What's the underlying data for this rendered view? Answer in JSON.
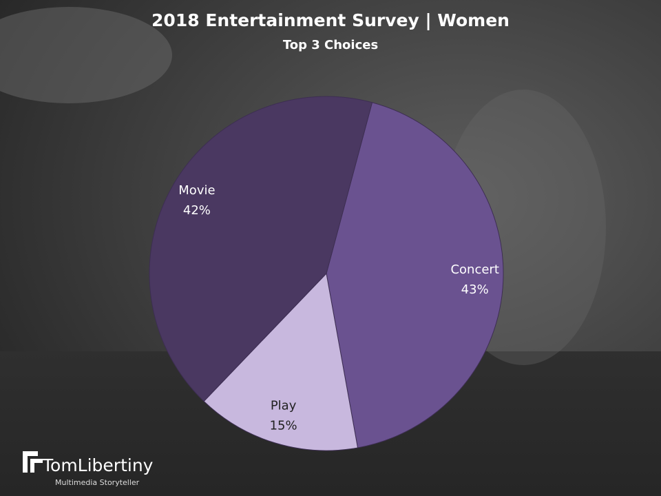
{
  "chart_data": {
    "type": "pie",
    "title": "2018 Entertainment Survey | Women",
    "subtitle": "Top 3 Choices",
    "categories": [
      "Concert",
      "Play",
      "Movie"
    ],
    "values": [
      43,
      15,
      42
    ],
    "value_labels": [
      "43%",
      "15%",
      "42%"
    ],
    "colors": [
      "#6a5290",
      "#c8b8de",
      "#4a3861"
    ]
  },
  "logo": {
    "name": "TomLibertiny",
    "tagline": "Multimedia Storyteller"
  }
}
